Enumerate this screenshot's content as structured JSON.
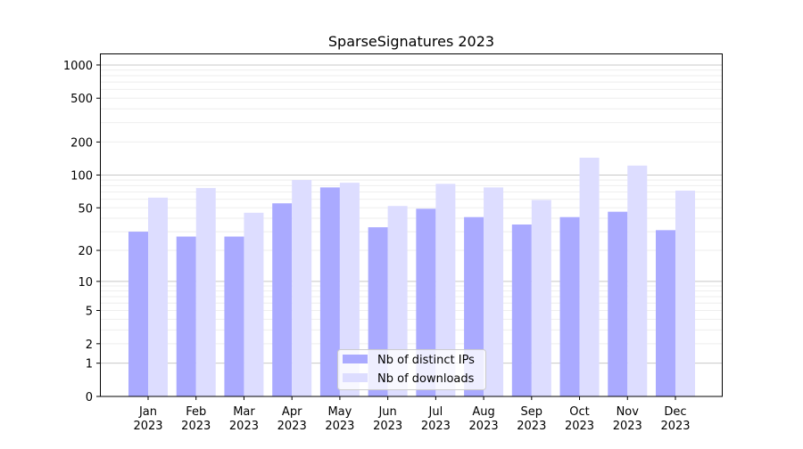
{
  "chart_data": {
    "type": "bar",
    "title": "SparseSignatures 2023",
    "xlabel": "",
    "ylabel": "",
    "yscale": "log10(1+y)",
    "ylim": [
      0,
      1270
    ],
    "yticks": [
      0,
      1,
      2,
      5,
      10,
      20,
      50,
      100,
      200,
      500,
      1000
    ],
    "grid": true,
    "legend_position": "bottom-center",
    "categories": [
      "Jan\n2023",
      "Feb\n2023",
      "Mar\n2023",
      "Apr\n2023",
      "May\n2023",
      "Jun\n2023",
      "Jul\n2023",
      "Aug\n2023",
      "Sep\n2023",
      "Oct\n2023",
      "Nov\n2023",
      "Dec\n2023"
    ],
    "series": [
      {
        "name": "Nb of distinct IPs",
        "color": "#aaaaff",
        "values": [
          30,
          27,
          27,
          55,
          77,
          33,
          49,
          41,
          35,
          41,
          46,
          31
        ]
      },
      {
        "name": "Nb of downloads",
        "color": "#ddddff",
        "values": [
          62,
          76,
          45,
          90,
          85,
          52,
          83,
          77,
          59,
          144,
          122,
          72
        ]
      }
    ]
  }
}
